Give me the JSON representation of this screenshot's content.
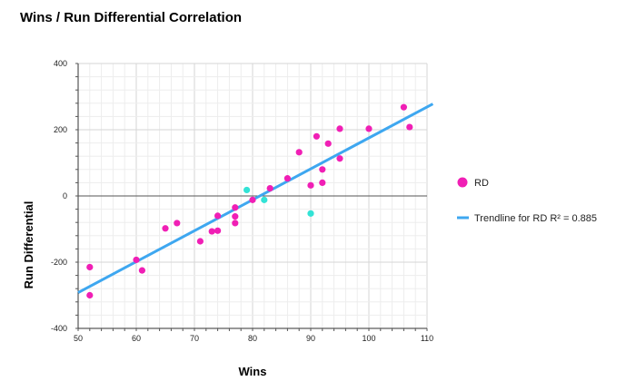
{
  "chart_data": {
    "type": "scatter",
    "title": "Wins / Run Differential Correlation",
    "xlabel": "Wins",
    "ylabel": "Run Differential",
    "xlim": [
      50,
      110
    ],
    "ylim": [
      -400,
      400
    ],
    "x_ticks": [
      50,
      60,
      70,
      80,
      90,
      100,
      110
    ],
    "y_ticks": [
      -400,
      -200,
      0,
      200,
      400
    ],
    "grid": true,
    "legend_position": "right",
    "series": [
      {
        "name": "RD",
        "color": "#f01fb5",
        "highlight_color": "#33e3d6",
        "points": [
          {
            "x": 52,
            "y": -215
          },
          {
            "x": 52,
            "y": -300
          },
          {
            "x": 60,
            "y": -193
          },
          {
            "x": 61,
            "y": -225
          },
          {
            "x": 65,
            "y": -98
          },
          {
            "x": 67,
            "y": -82
          },
          {
            "x": 71,
            "y": -137
          },
          {
            "x": 73,
            "y": -107
          },
          {
            "x": 74,
            "y": -105
          },
          {
            "x": 74,
            "y": -60
          },
          {
            "x": 77,
            "y": -35
          },
          {
            "x": 77,
            "y": -62
          },
          {
            "x": 77,
            "y": -82
          },
          {
            "x": 79,
            "y": 18,
            "highlight": true
          },
          {
            "x": 80,
            "y": -12
          },
          {
            "x": 82,
            "y": -12,
            "highlight": true
          },
          {
            "x": 83,
            "y": 23
          },
          {
            "x": 86,
            "y": 53
          },
          {
            "x": 88,
            "y": 132
          },
          {
            "x": 90,
            "y": 32
          },
          {
            "x": 90,
            "y": -53,
            "highlight": true
          },
          {
            "x": 91,
            "y": 180
          },
          {
            "x": 92,
            "y": 80
          },
          {
            "x": 92,
            "y": 40
          },
          {
            "x": 93,
            "y": 158
          },
          {
            "x": 95,
            "y": 203
          },
          {
            "x": 95,
            "y": 113
          },
          {
            "x": 100,
            "y": 203
          },
          {
            "x": 106,
            "y": 268
          },
          {
            "x": 107,
            "y": 208
          }
        ]
      }
    ],
    "trendline": {
      "name": "Trendline for RD R² = 0.885",
      "color": "#3ea7f0",
      "start": {
        "x": 50,
        "y": -292
      },
      "end": {
        "x": 111,
        "y": 278
      }
    }
  }
}
